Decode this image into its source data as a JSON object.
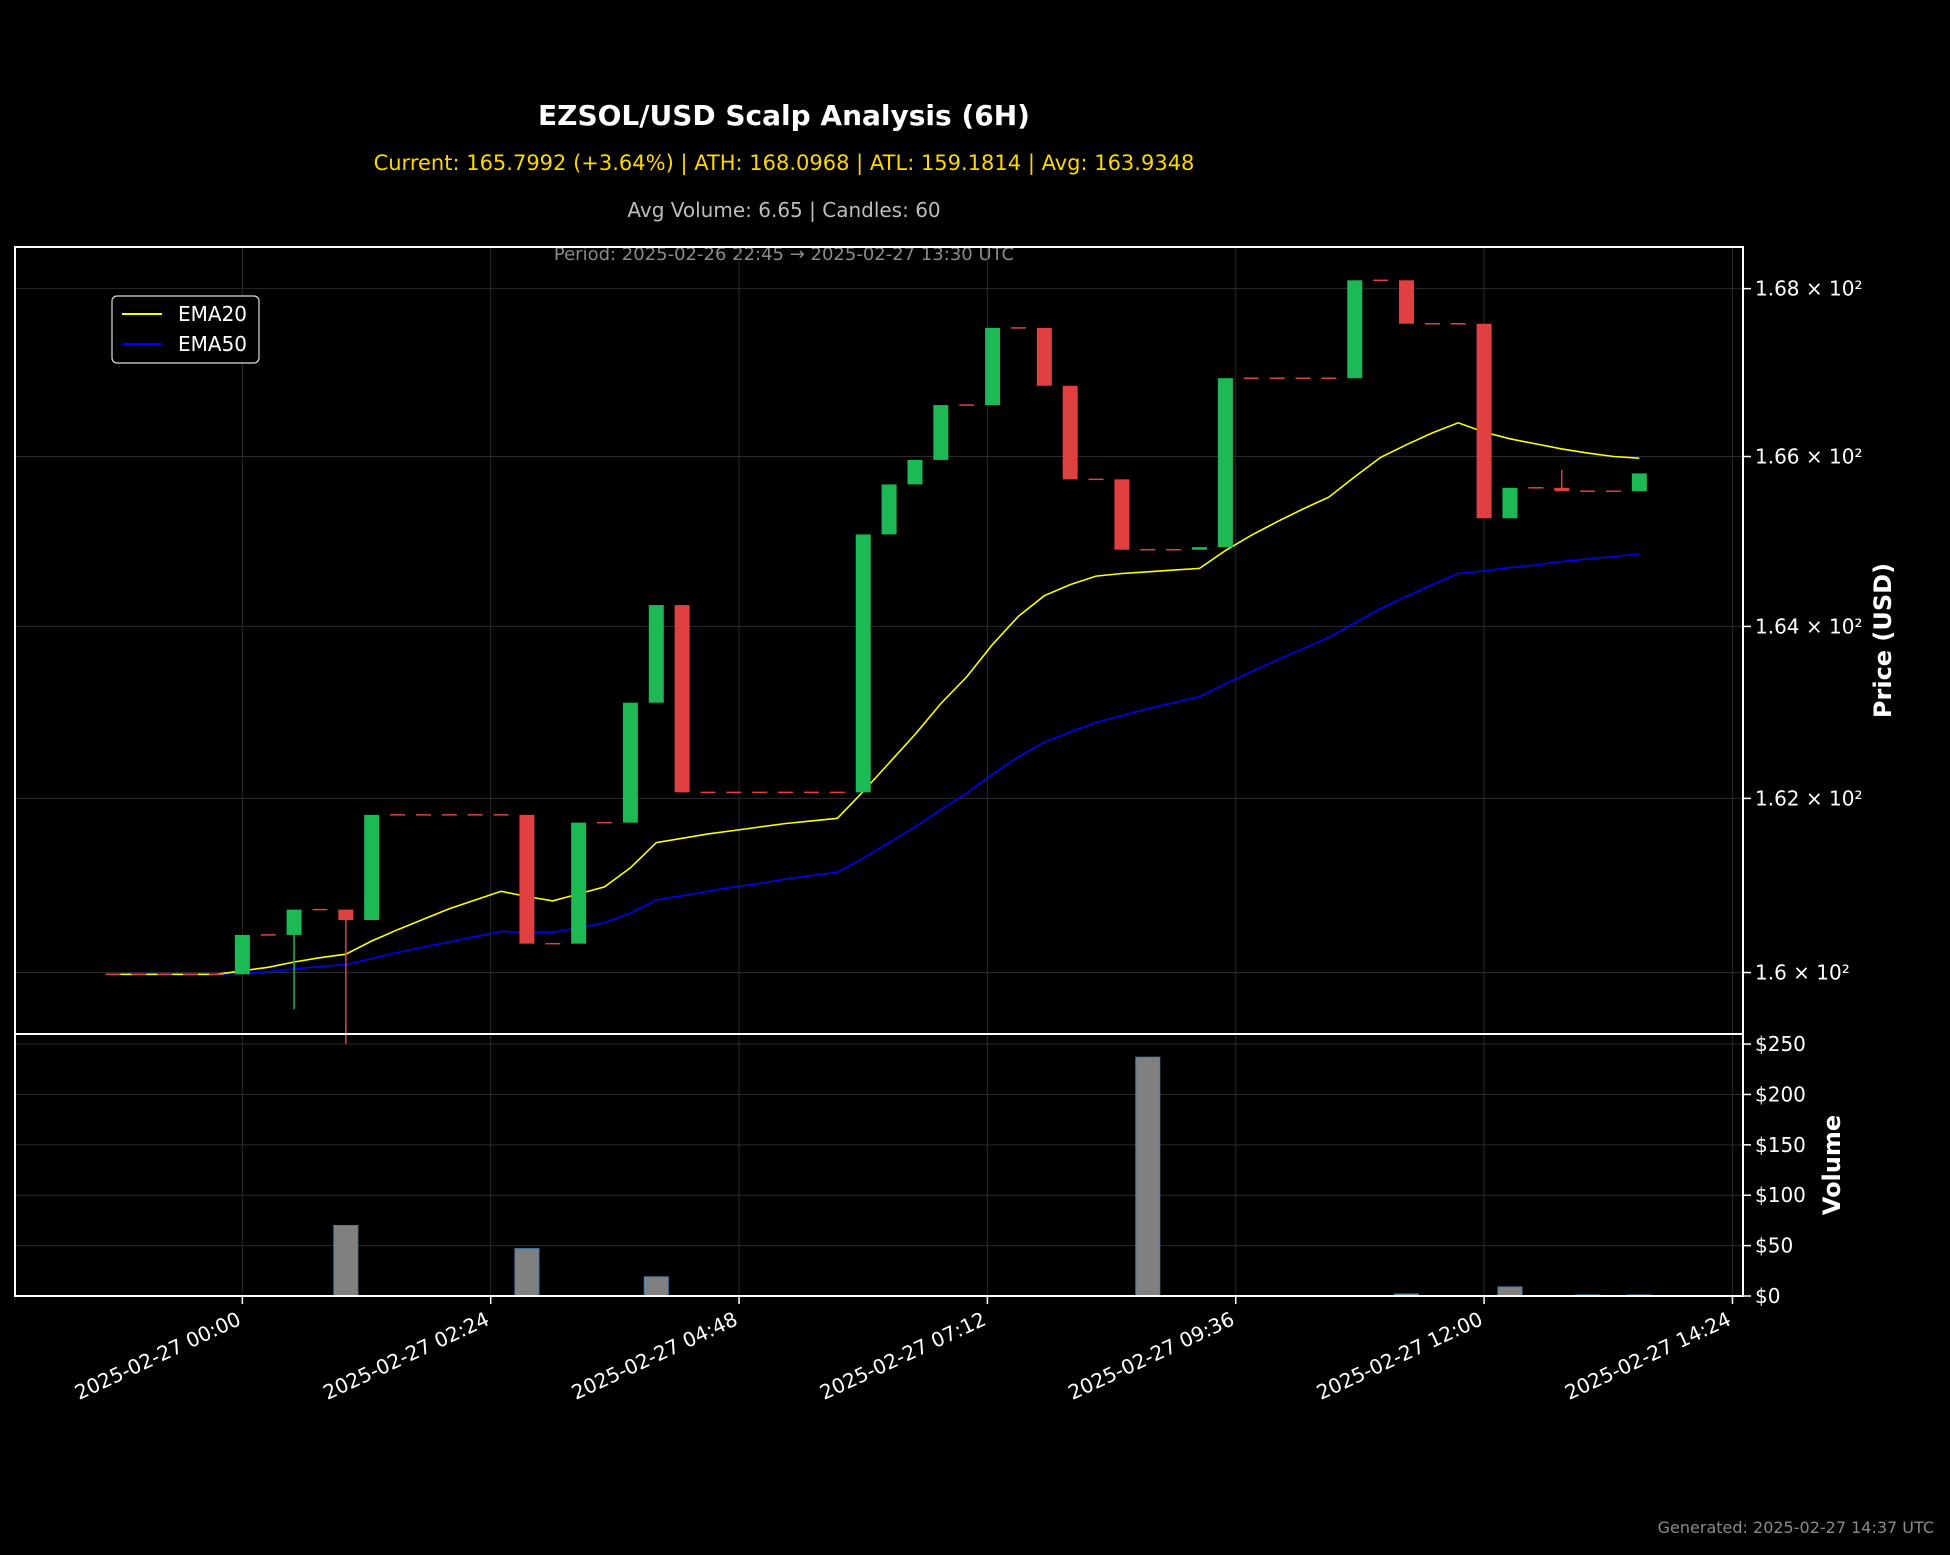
{
  "title": "EZSOL/USD Scalp Analysis (6H)",
  "stats_line": "Current: 165.7992 (+3.64%) | ATH: 168.0968 | ATL: 159.1814 | Avg: 163.9348",
  "volume_line": "Avg Volume: 6.65 | Candles: 60",
  "period_line": "Period: 2025-02-26 22:45 → 2025-02-27 13:30 UTC",
  "generated": "Generated: 2025-02-27 14:37 UTC",
  "colors": {
    "up": "#1db954",
    "down": "#e04040",
    "ema20": "#ffff00",
    "ema50": "#0000ff",
    "volume": "#808080",
    "background": "#000000",
    "grid": "#2a2a2a"
  },
  "chart_data": [
    {
      "type": "candlestick",
      "ylabel": "Price (USD)",
      "yscale": "log",
      "ylim": [
        159.3,
        168.5
      ],
      "y_ticks": [
        {
          "value": 160,
          "label": "1.6 × 10²"
        },
        {
          "value": 162,
          "label": "1.62 × 10²"
        },
        {
          "value": 164,
          "label": "1.64 × 10²"
        },
        {
          "value": 166,
          "label": "1.66 × 10²"
        },
        {
          "value": 168,
          "label": "1.68 × 10²"
        }
      ],
      "x_ticks": [
        "2025-02-27 00:00",
        "2025-02-27 02:24",
        "2025-02-27 04:48",
        "2025-02-27 07:12",
        "2025-02-27 09:36",
        "2025-02-27 12:00",
        "2025-02-27 14:24"
      ],
      "legend": {
        "position": "top-left",
        "entries": [
          "EMA20",
          "EMA50"
        ]
      },
      "grid": true,
      "candles": [
        {
          "t": "2025-02-26 22:45",
          "o": 159.98,
          "h": 159.98,
          "l": 159.98,
          "c": 159.98
        },
        {
          "t": "2025-02-26 23:00",
          "o": 159.98,
          "h": 159.98,
          "l": 159.98,
          "c": 159.98
        },
        {
          "t": "2025-02-26 23:15",
          "o": 159.98,
          "h": 159.98,
          "l": 159.98,
          "c": 159.98
        },
        {
          "t": "2025-02-26 23:30",
          "o": 159.98,
          "h": 159.98,
          "l": 159.98,
          "c": 159.98
        },
        {
          "t": "2025-02-26 23:45",
          "o": 159.98,
          "h": 159.98,
          "l": 159.98,
          "c": 159.98
        },
        {
          "t": "2025-02-27 00:00",
          "o": 159.98,
          "h": 160.43,
          "l": 159.98,
          "c": 160.43
        },
        {
          "t": "2025-02-27 00:15",
          "o": 160.43,
          "h": 160.43,
          "l": 160.43,
          "c": 160.43
        },
        {
          "t": "2025-02-27 00:30",
          "o": 160.43,
          "h": 160.72,
          "l": 159.58,
          "c": 160.72
        },
        {
          "t": "2025-02-27 00:45",
          "o": 160.72,
          "h": 160.72,
          "l": 160.72,
          "c": 160.72
        },
        {
          "t": "2025-02-27 01:00",
          "o": 160.72,
          "h": 160.72,
          "l": 159.18,
          "c": 160.6
        },
        {
          "t": "2025-02-27 01:15",
          "o": 160.6,
          "h": 161.81,
          "l": 160.6,
          "c": 161.81
        },
        {
          "t": "2025-02-27 01:30",
          "o": 161.81,
          "h": 161.81,
          "l": 161.81,
          "c": 161.81
        },
        {
          "t": "2025-02-27 01:45",
          "o": 161.81,
          "h": 161.81,
          "l": 161.81,
          "c": 161.81
        },
        {
          "t": "2025-02-27 02:00",
          "o": 161.81,
          "h": 161.81,
          "l": 161.81,
          "c": 161.81
        },
        {
          "t": "2025-02-27 02:15",
          "o": 161.81,
          "h": 161.81,
          "l": 161.81,
          "c": 161.81
        },
        {
          "t": "2025-02-27 02:30",
          "o": 161.81,
          "h": 161.81,
          "l": 161.81,
          "c": 161.81
        },
        {
          "t": "2025-02-27 02:45",
          "o": 161.81,
          "h": 161.81,
          "l": 160.33,
          "c": 160.33
        },
        {
          "t": "2025-02-27 03:00",
          "o": 160.33,
          "h": 160.33,
          "l": 160.33,
          "c": 160.33
        },
        {
          "t": "2025-02-27 03:15",
          "o": 160.33,
          "h": 161.72,
          "l": 160.33,
          "c": 161.72
        },
        {
          "t": "2025-02-27 03:30",
          "o": 161.72,
          "h": 161.72,
          "l": 161.72,
          "c": 161.72
        },
        {
          "t": "2025-02-27 03:45",
          "o": 161.72,
          "h": 163.11,
          "l": 161.72,
          "c": 163.11
        },
        {
          "t": "2025-02-27 04:00",
          "o": 163.11,
          "h": 164.25,
          "l": 163.11,
          "c": 164.25
        },
        {
          "t": "2025-02-27 04:15",
          "o": 164.25,
          "h": 164.25,
          "l": 162.07,
          "c": 162.07
        },
        {
          "t": "2025-02-27 04:30",
          "o": 162.07,
          "h": 162.07,
          "l": 162.07,
          "c": 162.07
        },
        {
          "t": "2025-02-27 04:45",
          "o": 162.07,
          "h": 162.07,
          "l": 162.07,
          "c": 162.07
        },
        {
          "t": "2025-02-27 05:00",
          "o": 162.07,
          "h": 162.07,
          "l": 162.07,
          "c": 162.07
        },
        {
          "t": "2025-02-27 05:15",
          "o": 162.07,
          "h": 162.07,
          "l": 162.07,
          "c": 162.07
        },
        {
          "t": "2025-02-27 05:30",
          "o": 162.07,
          "h": 162.07,
          "l": 162.07,
          "c": 162.07
        },
        {
          "t": "2025-02-27 05:45",
          "o": 162.07,
          "h": 162.07,
          "l": 162.07,
          "c": 162.07
        },
        {
          "t": "2025-02-27 06:00",
          "o": 162.07,
          "h": 165.08,
          "l": 162.07,
          "c": 165.08
        },
        {
          "t": "2025-02-27 06:15",
          "o": 165.08,
          "h": 165.67,
          "l": 165.08,
          "c": 165.67
        },
        {
          "t": "2025-02-27 06:30",
          "o": 165.67,
          "h": 165.96,
          "l": 165.67,
          "c": 165.96
        },
        {
          "t": "2025-02-27 06:45",
          "o": 165.96,
          "h": 166.61,
          "l": 165.96,
          "c": 166.61
        },
        {
          "t": "2025-02-27 07:00",
          "o": 166.61,
          "h": 166.61,
          "l": 166.61,
          "c": 166.61
        },
        {
          "t": "2025-02-27 07:15",
          "o": 166.61,
          "h": 167.53,
          "l": 166.61,
          "c": 167.53
        },
        {
          "t": "2025-02-27 07:30",
          "o": 167.53,
          "h": 167.53,
          "l": 167.53,
          "c": 167.53
        },
        {
          "t": "2025-02-27 07:45",
          "o": 167.53,
          "h": 167.53,
          "l": 166.84,
          "c": 166.84
        },
        {
          "t": "2025-02-27 08:00",
          "o": 166.84,
          "h": 166.84,
          "l": 165.73,
          "c": 165.73
        },
        {
          "t": "2025-02-27 08:15",
          "o": 165.73,
          "h": 165.73,
          "l": 165.73,
          "c": 165.73
        },
        {
          "t": "2025-02-27 08:30",
          "o": 165.73,
          "h": 165.73,
          "l": 164.9,
          "c": 164.9
        },
        {
          "t": "2025-02-27 08:45",
          "o": 164.9,
          "h": 164.9,
          "l": 164.9,
          "c": 164.9
        },
        {
          "t": "2025-02-27 09:00",
          "o": 164.9,
          "h": 164.9,
          "l": 164.9,
          "c": 164.9
        },
        {
          "t": "2025-02-27 09:15",
          "o": 164.9,
          "h": 164.93,
          "l": 164.9,
          "c": 164.93
        },
        {
          "t": "2025-02-27 09:30",
          "o": 164.93,
          "h": 166.93,
          "l": 164.93,
          "c": 166.93
        },
        {
          "t": "2025-02-27 09:45",
          "o": 166.93,
          "h": 166.93,
          "l": 166.93,
          "c": 166.93
        },
        {
          "t": "2025-02-27 10:00",
          "o": 166.93,
          "h": 166.93,
          "l": 166.93,
          "c": 166.93
        },
        {
          "t": "2025-02-27 10:15",
          "o": 166.93,
          "h": 166.93,
          "l": 166.93,
          "c": 166.93
        },
        {
          "t": "2025-02-27 10:30",
          "o": 166.93,
          "h": 166.93,
          "l": 166.93,
          "c": 166.93
        },
        {
          "t": "2025-02-27 10:45",
          "o": 166.93,
          "h": 168.1,
          "l": 166.93,
          "c": 168.1
        },
        {
          "t": "2025-02-27 11:00",
          "o": 168.1,
          "h": 168.1,
          "l": 168.1,
          "c": 168.1
        },
        {
          "t": "2025-02-27 11:15",
          "o": 168.1,
          "h": 168.1,
          "l": 167.58,
          "c": 167.58
        },
        {
          "t": "2025-02-27 11:30",
          "o": 167.58,
          "h": 167.58,
          "l": 167.58,
          "c": 167.58
        },
        {
          "t": "2025-02-27 11:45",
          "o": 167.58,
          "h": 167.58,
          "l": 167.58,
          "c": 167.58
        },
        {
          "t": "2025-02-27 12:00",
          "o": 167.58,
          "h": 167.58,
          "l": 165.27,
          "c": 165.27
        },
        {
          "t": "2025-02-27 12:15",
          "o": 165.27,
          "h": 165.63,
          "l": 165.27,
          "c": 165.63
        },
        {
          "t": "2025-02-27 12:30",
          "o": 165.63,
          "h": 165.63,
          "l": 165.63,
          "c": 165.63
        },
        {
          "t": "2025-02-27 12:45",
          "o": 165.63,
          "h": 165.84,
          "l": 165.59,
          "c": 165.59
        },
        {
          "t": "2025-02-27 13:00",
          "o": 165.59,
          "h": 165.59,
          "l": 165.59,
          "c": 165.59
        },
        {
          "t": "2025-02-27 13:15",
          "o": 165.59,
          "h": 165.59,
          "l": 165.59,
          "c": 165.59
        },
        {
          "t": "2025-02-27 13:30",
          "o": 165.59,
          "h": 165.8,
          "l": 165.59,
          "c": 165.8
        }
      ],
      "ema20": [
        159.98,
        159.98,
        159.98,
        159.98,
        159.98,
        160.02,
        160.06,
        160.12,
        160.17,
        160.21,
        160.36,
        160.49,
        160.61,
        160.73,
        160.83,
        160.93,
        160.87,
        160.82,
        160.9,
        160.98,
        161.2,
        161.49,
        161.54,
        161.59,
        161.63,
        161.67,
        161.71,
        161.74,
        161.77,
        162.08,
        162.41,
        162.74,
        163.1,
        163.41,
        163.79,
        164.12,
        164.36,
        164.49,
        164.59,
        164.62,
        164.64,
        164.66,
        164.68,
        164.89,
        165.07,
        165.23,
        165.38,
        165.52,
        165.76,
        165.99,
        166.14,
        166.28,
        166.4,
        166.29,
        166.21,
        166.15,
        166.09,
        166.04,
        166.0,
        165.98
      ],
      "ema50": [
        159.98,
        159.98,
        159.98,
        159.98,
        159.98,
        159.99,
        160.01,
        160.04,
        160.07,
        160.09,
        160.16,
        160.23,
        160.29,
        160.35,
        160.41,
        160.47,
        160.46,
        160.46,
        160.51,
        160.57,
        160.68,
        160.83,
        160.88,
        160.93,
        160.98,
        161.02,
        161.07,
        161.11,
        161.15,
        161.31,
        161.49,
        161.67,
        161.87,
        162.06,
        162.28,
        162.48,
        162.65,
        162.77,
        162.88,
        162.96,
        163.04,
        163.11,
        163.18,
        163.33,
        163.47,
        163.61,
        163.74,
        163.87,
        164.04,
        164.21,
        164.35,
        164.49,
        164.62,
        164.65,
        164.69,
        164.72,
        164.76,
        164.79,
        164.82,
        164.85
      ]
    },
    {
      "type": "bar",
      "ylabel": "Volume",
      "ylim": [
        0,
        260
      ],
      "y_ticks": [
        {
          "value": 0,
          "label": "$0"
        },
        {
          "value": 50,
          "label": "$50"
        },
        {
          "value": 100,
          "label": "$100"
        },
        {
          "value": 150,
          "label": "$150"
        },
        {
          "value": 200,
          "label": "$200"
        },
        {
          "value": 250,
          "label": "$250"
        }
      ],
      "values": [
        0,
        0,
        0,
        0,
        0,
        0,
        0,
        0,
        0,
        70,
        0,
        0,
        0,
        0,
        0,
        0,
        47,
        0,
        0,
        0,
        0,
        19,
        0,
        0,
        0,
        0,
        0,
        0,
        0,
        0,
        0,
        0,
        0,
        0,
        0,
        0,
        0,
        0,
        0,
        0,
        237,
        0,
        0,
        0,
        0,
        0,
        0,
        0,
        0,
        0,
        2,
        0,
        0,
        0,
        9,
        0,
        0,
        1,
        0,
        1
      ]
    }
  ]
}
